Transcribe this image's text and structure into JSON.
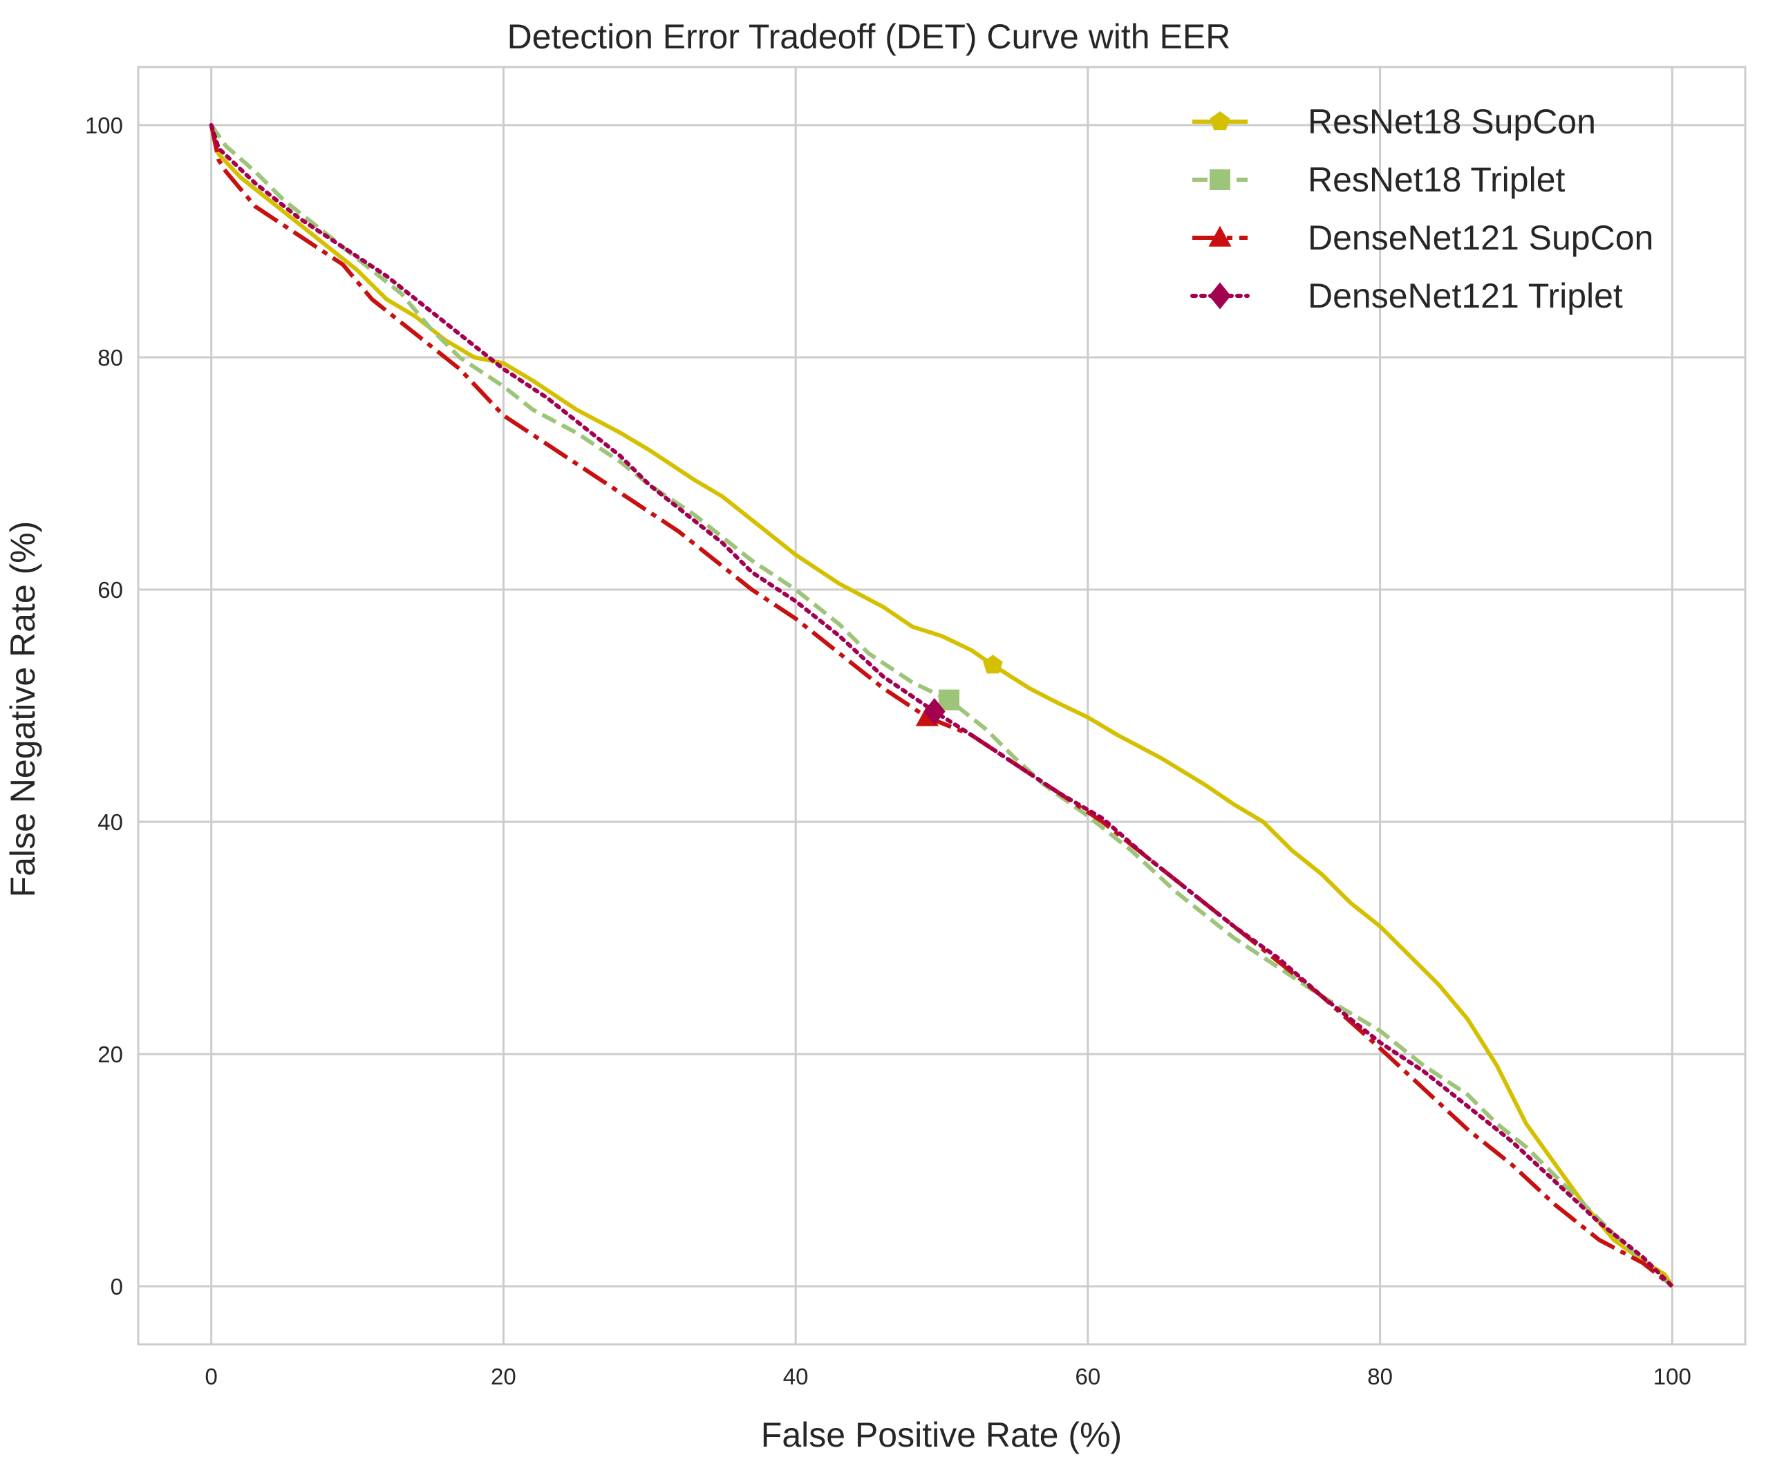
{
  "chart_data": {
    "type": "line",
    "title": "Detection Error Tradeoff (DET) Curve with EER",
    "xlabel": "False Positive Rate (%)",
    "ylabel": "False Negative Rate (%)",
    "xlim": [
      -5,
      105
    ],
    "ylim": [
      -5,
      105
    ],
    "xticks": [
      0,
      20,
      40,
      60,
      80,
      100
    ],
    "yticks": [
      0,
      20,
      40,
      60,
      80,
      100
    ],
    "xtick_labels": [
      "0",
      "20",
      "40",
      "60",
      "80",
      "100"
    ],
    "ytick_labels": [
      "0",
      "20",
      "40",
      "60",
      "80",
      "100"
    ],
    "grid": true,
    "legend_position": "upper-right",
    "series": [
      {
        "name": "ResNet18 SupCon",
        "color": "#d4c000",
        "line_style": "solid",
        "marker": "pentagon",
        "points": [
          [
            0,
            100
          ],
          [
            0.5,
            97.5
          ],
          [
            2,
            95.5
          ],
          [
            5,
            92.5
          ],
          [
            8,
            89.5
          ],
          [
            10,
            87.5
          ],
          [
            12,
            85
          ],
          [
            14,
            83.5
          ],
          [
            16,
            81.5
          ],
          [
            18,
            80
          ],
          [
            20,
            79.5
          ],
          [
            22,
            78
          ],
          [
            25,
            75.5
          ],
          [
            28,
            73.5
          ],
          [
            30,
            72
          ],
          [
            33,
            69.5
          ],
          [
            35,
            68
          ],
          [
            38,
            65
          ],
          [
            40,
            63
          ],
          [
            43,
            60.5
          ],
          [
            46,
            58.5
          ],
          [
            48,
            56.8
          ],
          [
            50,
            56
          ],
          [
            52,
            54.8
          ],
          [
            53.5,
            53.5
          ],
          [
            56,
            51.5
          ],
          [
            58,
            50.2
          ],
          [
            60,
            49
          ],
          [
            62,
            47.5
          ],
          [
            65,
            45.5
          ],
          [
            68,
            43.2
          ],
          [
            70,
            41.5
          ],
          [
            72,
            40
          ],
          [
            74,
            37.5
          ],
          [
            76,
            35.5
          ],
          [
            78,
            33
          ],
          [
            80,
            31
          ],
          [
            82,
            28.5
          ],
          [
            84,
            26
          ],
          [
            86,
            23
          ],
          [
            88,
            19
          ],
          [
            90,
            14
          ],
          [
            92,
            10.5
          ],
          [
            94,
            7
          ],
          [
            96,
            4
          ],
          [
            98,
            2.2
          ],
          [
            99.5,
            1
          ],
          [
            100,
            0
          ]
        ],
        "eer": [
          53.5,
          53.5
        ]
      },
      {
        "name": "ResNet18 Triplet",
        "color": "#9dc579",
        "line_style": "dashed",
        "marker": "square",
        "points": [
          [
            0,
            100
          ],
          [
            1,
            98.2
          ],
          [
            3,
            96
          ],
          [
            5,
            93.5
          ],
          [
            8,
            90.5
          ],
          [
            10,
            88.5
          ],
          [
            13,
            85.5
          ],
          [
            15,
            82.5
          ],
          [
            17,
            80
          ],
          [
            20,
            77.5
          ],
          [
            22,
            75.5
          ],
          [
            25,
            73.5
          ],
          [
            28,
            71
          ],
          [
            30,
            69
          ],
          [
            33,
            66.5
          ],
          [
            35,
            64.5
          ],
          [
            37,
            62.5
          ],
          [
            40,
            60
          ],
          [
            43,
            57
          ],
          [
            45,
            54.5
          ],
          [
            48,
            52
          ],
          [
            50.5,
            50.5
          ],
          [
            53,
            48
          ],
          [
            55,
            45.5
          ],
          [
            57,
            43.2
          ],
          [
            60,
            40.5
          ],
          [
            63,
            37.5
          ],
          [
            66,
            34
          ],
          [
            68,
            32
          ],
          [
            70,
            30
          ],
          [
            73,
            27.5
          ],
          [
            76,
            25
          ],
          [
            78,
            23.5
          ],
          [
            80,
            22
          ],
          [
            83,
            19
          ],
          [
            86,
            16.5
          ],
          [
            88,
            14
          ],
          [
            90,
            12
          ],
          [
            92,
            9.5
          ],
          [
            94,
            7
          ],
          [
            96,
            4.5
          ],
          [
            98,
            2.2
          ],
          [
            100,
            0
          ]
        ],
        "eer": [
          50.5,
          50.5
        ]
      },
      {
        "name": "DenseNet121 SupCon",
        "color": "#c81010",
        "line_style": "dashdot",
        "marker": "triangle",
        "points": [
          [
            0,
            100
          ],
          [
            0.5,
            97
          ],
          [
            1,
            96
          ],
          [
            3,
            93
          ],
          [
            6,
            90.5
          ],
          [
            9,
            88
          ],
          [
            11,
            85
          ],
          [
            14,
            82
          ],
          [
            17,
            79
          ],
          [
            20,
            75
          ],
          [
            23,
            72.5
          ],
          [
            26,
            70
          ],
          [
            29,
            67.5
          ],
          [
            32,
            65
          ],
          [
            34,
            63
          ],
          [
            37,
            60
          ],
          [
            40,
            57.5
          ],
          [
            43,
            54.5
          ],
          [
            46,
            51.5
          ],
          [
            49,
            49
          ],
          [
            52,
            47.5
          ],
          [
            55,
            45
          ],
          [
            58,
            42.5
          ],
          [
            61,
            40
          ],
          [
            64,
            37
          ],
          [
            67,
            34
          ],
          [
            70,
            31
          ],
          [
            73,
            28
          ],
          [
            76,
            25
          ],
          [
            80,
            20.5
          ],
          [
            83,
            17
          ],
          [
            86,
            13.5
          ],
          [
            89,
            10.5
          ],
          [
            92,
            7
          ],
          [
            95,
            4
          ],
          [
            98,
            2
          ],
          [
            100,
            0
          ]
        ],
        "eer": [
          49,
          49
        ]
      },
      {
        "name": "DenseNet121 Triplet",
        "color": "#a30050",
        "line_style": "dotted",
        "marker": "diamond",
        "points": [
          [
            0,
            100
          ],
          [
            0.5,
            98
          ],
          [
            3,
            95
          ],
          [
            6,
            92
          ],
          [
            9,
            89.5
          ],
          [
            12,
            87
          ],
          [
            15,
            84
          ],
          [
            18,
            81
          ],
          [
            20,
            79
          ],
          [
            23,
            76.5
          ],
          [
            25,
            74.5
          ],
          [
            28,
            71.5
          ],
          [
            30,
            69
          ],
          [
            33,
            66
          ],
          [
            35,
            64
          ],
          [
            37,
            61.5
          ],
          [
            40,
            59
          ],
          [
            43,
            56
          ],
          [
            46,
            52.5
          ],
          [
            49.5,
            49.5
          ],
          [
            52,
            47.5
          ],
          [
            55,
            45
          ],
          [
            58,
            42.5
          ],
          [
            61,
            40.3
          ],
          [
            64,
            37
          ],
          [
            67,
            34
          ],
          [
            70,
            31
          ],
          [
            73,
            28.3
          ],
          [
            76,
            25
          ],
          [
            78,
            23
          ],
          [
            80,
            21
          ],
          [
            83,
            18.5
          ],
          [
            86,
            15.5
          ],
          [
            89,
            12.5
          ],
          [
            92,
            9
          ],
          [
            95,
            5.5
          ],
          [
            98,
            2.5
          ],
          [
            100,
            0
          ]
        ],
        "eer": [
          49.5,
          49.5
        ]
      }
    ]
  }
}
